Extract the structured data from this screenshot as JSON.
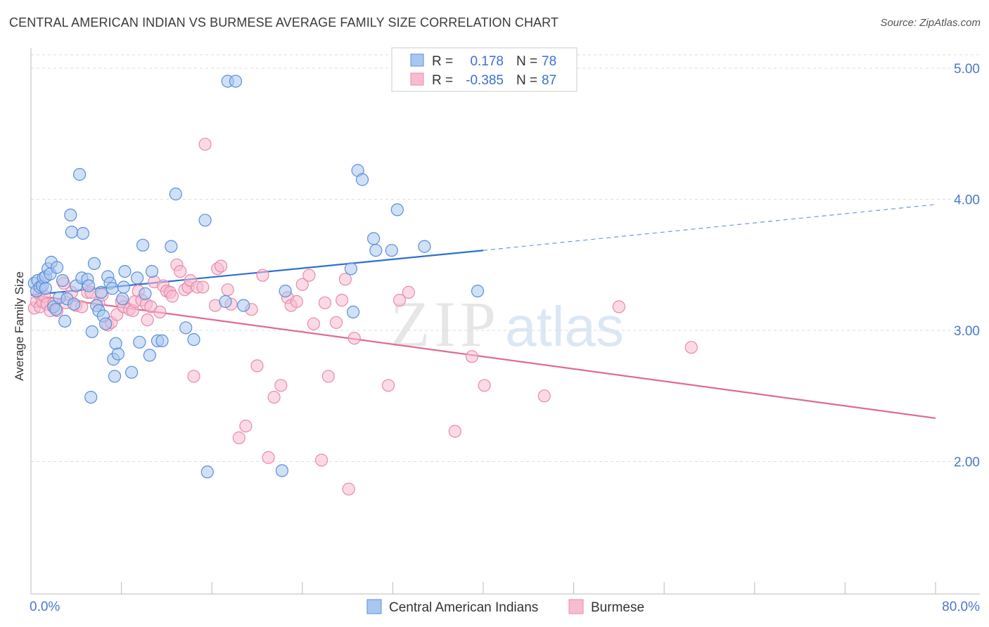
{
  "title": "CENTRAL AMERICAN INDIAN VS BURMESE AVERAGE FAMILY SIZE CORRELATION CHART",
  "source": "Source: ZipAtlas.com",
  "watermark": {
    "zip": "ZIP",
    "atlas": "atlas"
  },
  "colors": {
    "blue_fill": "#a9c7f0",
    "blue_stroke": "#5a8fd8",
    "blue_line": "#2f6fd0",
    "pink_fill": "#f7bcd0",
    "pink_stroke": "#e88aab",
    "pink_line": "#e06a95",
    "tick_text": "#4a78c8",
    "grid": "#dddddd"
  },
  "legend": {
    "rows": [
      {
        "r_label": "R =",
        "r_value": "0.178",
        "n_label": "N =",
        "n_value": "78"
      },
      {
        "r_label": "R =",
        "r_value": "-0.385",
        "n_label": "N =",
        "n_value": "87"
      }
    ]
  },
  "chart_data": {
    "type": "scatter",
    "title": "CENTRAL AMERICAN INDIAN VS BURMESE AVERAGE FAMILY SIZE CORRELATION CHART",
    "xlabel": "",
    "ylabel": "Average Family Size",
    "xlim": [
      0,
      80
    ],
    "ylim": [
      1.0,
      5.15
    ],
    "x_tick_labels": [
      "0.0%",
      "80.0%"
    ],
    "y_ticks": [
      2.0,
      3.0,
      4.0,
      5.0
    ],
    "y_tick_labels": [
      "2.00",
      "3.00",
      "4.00",
      "5.00"
    ],
    "grid": "horizontal dashed",
    "legend_position": "top-center",
    "series": [
      {
        "name": "Central American Indians",
        "trend": {
          "x0": 0,
          "y0": 3.27,
          "x1": 40,
          "y1": 3.61,
          "dashed_to_x": 80,
          "dashed_to_y": 3.96
        },
        "points": [
          [
            0.3,
            3.36
          ],
          [
            0.5,
            3.3
          ],
          [
            0.6,
            3.38
          ],
          [
            0.8,
            3.33
          ],
          [
            1.0,
            3.34
          ],
          [
            1.1,
            3.4
          ],
          [
            1.3,
            3.41
          ],
          [
            1.3,
            3.32
          ],
          [
            1.5,
            3.47
          ],
          [
            1.7,
            3.43
          ],
          [
            1.8,
            3.52
          ],
          [
            2.0,
            3.18
          ],
          [
            2.2,
            3.16
          ],
          [
            2.3,
            3.48
          ],
          [
            2.5,
            3.25
          ],
          [
            2.8,
            3.38
          ],
          [
            3.0,
            3.07
          ],
          [
            3.2,
            3.24
          ],
          [
            3.5,
            3.88
          ],
          [
            3.6,
            3.75
          ],
          [
            3.8,
            3.2
          ],
          [
            4.0,
            3.34
          ],
          [
            4.3,
            4.19
          ],
          [
            4.5,
            3.4
          ],
          [
            4.6,
            3.74
          ],
          [
            5.0,
            3.39
          ],
          [
            5.1,
            3.34
          ],
          [
            5.3,
            2.49
          ],
          [
            5.4,
            2.99
          ],
          [
            5.6,
            3.51
          ],
          [
            5.8,
            3.19
          ],
          [
            6.0,
            3.15
          ],
          [
            6.2,
            3.29
          ],
          [
            6.4,
            3.11
          ],
          [
            6.6,
            3.05
          ],
          [
            6.8,
            3.41
          ],
          [
            7.0,
            3.36
          ],
          [
            7.2,
            3.32
          ],
          [
            7.3,
            2.78
          ],
          [
            7.4,
            2.65
          ],
          [
            7.5,
            2.9
          ],
          [
            7.7,
            2.82
          ],
          [
            8.1,
            3.24
          ],
          [
            8.2,
            3.33
          ],
          [
            8.3,
            3.45
          ],
          [
            8.9,
            2.68
          ],
          [
            9.4,
            3.4
          ],
          [
            9.6,
            2.91
          ],
          [
            9.9,
            3.65
          ],
          [
            10.1,
            3.28
          ],
          [
            10.5,
            2.81
          ],
          [
            10.7,
            3.45
          ],
          [
            11.2,
            2.92
          ],
          [
            11.6,
            2.92
          ],
          [
            12.4,
            3.64
          ],
          [
            12.8,
            4.04
          ],
          [
            13.7,
            3.02
          ],
          [
            14.4,
            2.93
          ],
          [
            15.4,
            3.84
          ],
          [
            15.6,
            1.92
          ],
          [
            17.2,
            3.22
          ],
          [
            17.4,
            4.9
          ],
          [
            18.1,
            4.9
          ],
          [
            18.8,
            3.19
          ],
          [
            22.5,
            3.3
          ],
          [
            22.2,
            1.93
          ],
          [
            28.5,
            3.14
          ],
          [
            28.3,
            3.47
          ],
          [
            28.9,
            4.22
          ],
          [
            29.3,
            4.15
          ],
          [
            30.3,
            3.7
          ],
          [
            30.5,
            3.61
          ],
          [
            31.9,
            3.61
          ],
          [
            32.4,
            3.92
          ],
          [
            34.8,
            3.64
          ],
          [
            39.5,
            3.3
          ]
        ]
      },
      {
        "name": "Burmese",
        "trend": {
          "x0": 0,
          "y0": 3.27,
          "x1": 80,
          "y1": 2.33
        },
        "points": [
          [
            0.3,
            3.17
          ],
          [
            0.5,
            3.22
          ],
          [
            0.7,
            3.28
          ],
          [
            0.8,
            3.18
          ],
          [
            1.0,
            3.22
          ],
          [
            1.2,
            3.26
          ],
          [
            1.4,
            3.2
          ],
          [
            1.7,
            3.15
          ],
          [
            2.0,
            3.2
          ],
          [
            2.3,
            3.15
          ],
          [
            2.9,
            3.36
          ],
          [
            3.1,
            3.21
          ],
          [
            3.6,
            3.29
          ],
          [
            4.0,
            3.19
          ],
          [
            4.5,
            3.18
          ],
          [
            5.0,
            3.29
          ],
          [
            5.3,
            3.29
          ],
          [
            6.0,
            3.21
          ],
          [
            6.3,
            3.27
          ],
          [
            6.8,
            3.04
          ],
          [
            7.1,
            3.06
          ],
          [
            7.6,
            3.12
          ],
          [
            8.0,
            3.22
          ],
          [
            8.2,
            3.18
          ],
          [
            8.7,
            3.16
          ],
          [
            9.0,
            3.15
          ],
          [
            9.2,
            3.22
          ],
          [
            9.5,
            3.3
          ],
          [
            9.8,
            3.23
          ],
          [
            10.2,
            3.2
          ],
          [
            10.3,
            3.08
          ],
          [
            10.6,
            3.18
          ],
          [
            10.9,
            3.37
          ],
          [
            11.4,
            3.14
          ],
          [
            11.7,
            3.34
          ],
          [
            12.0,
            3.3
          ],
          [
            12.3,
            3.29
          ],
          [
            12.5,
            3.26
          ],
          [
            12.9,
            3.5
          ],
          [
            13.2,
            3.45
          ],
          [
            13.6,
            3.31
          ],
          [
            13.9,
            3.33
          ],
          [
            14.1,
            3.38
          ],
          [
            14.4,
            2.65
          ],
          [
            14.7,
            3.33
          ],
          [
            15.2,
            3.33
          ],
          [
            15.4,
            4.42
          ],
          [
            16.3,
            3.19
          ],
          [
            16.5,
            3.47
          ],
          [
            16.8,
            3.49
          ],
          [
            17.4,
            3.31
          ],
          [
            17.7,
            3.2
          ],
          [
            18.4,
            2.18
          ],
          [
            19.0,
            2.27
          ],
          [
            19.5,
            3.16
          ],
          [
            20.0,
            2.73
          ],
          [
            20.5,
            3.42
          ],
          [
            21.0,
            2.03
          ],
          [
            21.5,
            2.49
          ],
          [
            22.1,
            2.58
          ],
          [
            22.7,
            3.25
          ],
          [
            23.0,
            3.19
          ],
          [
            23.5,
            3.22
          ],
          [
            24.0,
            3.35
          ],
          [
            24.6,
            3.42
          ],
          [
            25.0,
            3.05
          ],
          [
            25.7,
            2.01
          ],
          [
            26.0,
            3.21
          ],
          [
            26.3,
            2.65
          ],
          [
            27.0,
            3.06
          ],
          [
            27.5,
            3.23
          ],
          [
            27.8,
            3.39
          ],
          [
            28.1,
            1.79
          ],
          [
            28.6,
            2.94
          ],
          [
            31.6,
            2.58
          ],
          [
            32.6,
            3.23
          ],
          [
            33.4,
            3.29
          ],
          [
            37.5,
            2.23
          ],
          [
            39.0,
            2.8
          ],
          [
            40.1,
            2.58
          ],
          [
            45.4,
            2.5
          ],
          [
            52.0,
            3.18
          ],
          [
            58.4,
            2.87
          ]
        ]
      }
    ]
  },
  "x_axis": {
    "left_label": "0.0%",
    "right_label": "80.0%"
  },
  "bottom_legend": {
    "items": [
      {
        "label": "Central American Indians"
      },
      {
        "label": "Burmese"
      }
    ]
  }
}
